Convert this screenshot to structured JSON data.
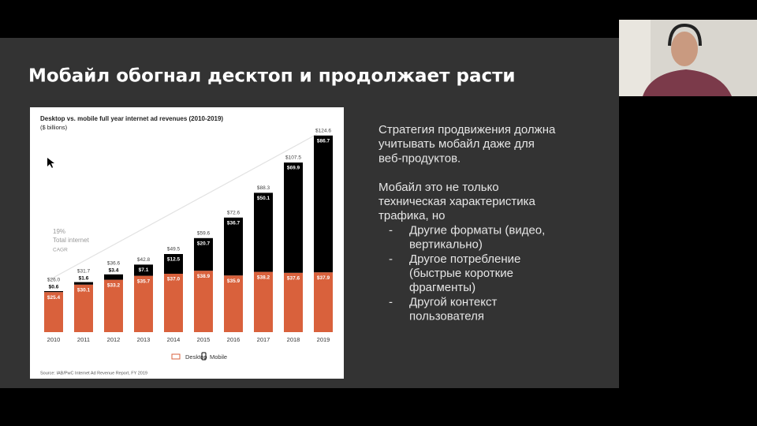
{
  "slide": {
    "title": "Мобайл обогнал десктоп и продолжает расти"
  },
  "chart_data": {
    "type": "bar",
    "stacked": true,
    "title": "Desktop vs. mobile full year internet ad revenues (2010-2019)",
    "subtitle": "($ billions)",
    "categories": [
      "2010",
      "2011",
      "2012",
      "2013",
      "2014",
      "2015",
      "2016",
      "2017",
      "2018",
      "2019"
    ],
    "series": [
      {
        "name": "Desktop",
        "color": "#d9613c",
        "values": [
          25.4,
          30.1,
          33.2,
          35.7,
          37.0,
          38.9,
          35.9,
          38.2,
          37.6,
          37.9
        ],
        "value_labels": [
          "$25.4",
          "$30.1",
          "$33.2",
          "$35.7",
          "$37.0",
          "$38.9",
          "$35.9",
          "$38.2",
          "$37.6",
          "$37.9"
        ]
      },
      {
        "name": "Mobile",
        "color": "#000000",
        "values": [
          0.6,
          1.6,
          3.4,
          7.1,
          12.5,
          20.7,
          36.7,
          50.1,
          69.9,
          86.7
        ],
        "value_labels": [
          "$0.6",
          "$1.6",
          "$3.4",
          "$7.1",
          "$12.5",
          "$20.7",
          "$36.7",
          "$50.1",
          "$69.9",
          "$86.7"
        ]
      }
    ],
    "totals": [
      26.0,
      31.7,
      36.6,
      42.8,
      49.5,
      59.6,
      72.6,
      88.3,
      107.5,
      124.6
    ],
    "total_labels": [
      "$26.0",
      "$31.7",
      "$36.6",
      "$42.8",
      "$49.5",
      "$59.6",
      "$72.6",
      "$88.3",
      "$107.5",
      "$124.6"
    ],
    "ylim": [
      0,
      130
    ],
    "annotations": [
      "19%",
      "Total internet",
      "CAGR"
    ],
    "source": "Source: IAB/PwC Internet Ad Revenue Report, FY 2019"
  },
  "text": {
    "paragraphs": [
      [
        "Стратегия продвижения должна",
        "учитывать мобайл даже для",
        "веб-продуктов."
      ],
      [
        "Мобайл это не только",
        "техническая характеристика",
        "трафика, но"
      ]
    ],
    "bullets": [
      {
        "marker": "-",
        "lines": [
          "Другие форматы (видео,",
          "вертикально)"
        ]
      },
      {
        "marker": "-",
        "lines": [
          "Другое потребление",
          "(быстрые короткие",
          "фрагменты)"
        ]
      },
      {
        "marker": "-",
        "lines": [
          "Другой контекст",
          "пользователя"
        ]
      }
    ]
  }
}
